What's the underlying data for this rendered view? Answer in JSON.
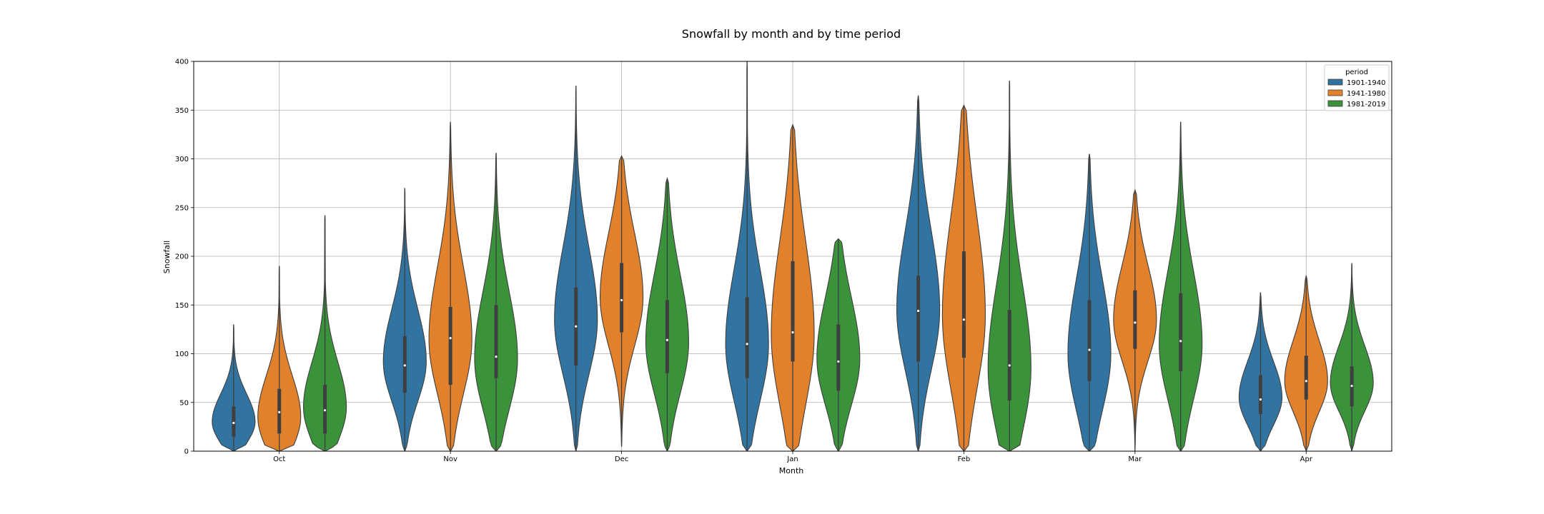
{
  "chart_data": {
    "type": "violin",
    "title": "Snowfall by month and by time period",
    "xlabel": "Month",
    "ylabel": "Snowfall",
    "ylim": [
      0,
      400
    ],
    "yticks": [
      0,
      50,
      100,
      150,
      200,
      250,
      300,
      350,
      400
    ],
    "grid": true,
    "legend": {
      "title": "period",
      "placement": "top-right"
    },
    "categories": [
      "Oct",
      "Nov",
      "Dec",
      "Jan",
      "Feb",
      "Mar",
      "Apr"
    ],
    "series": [
      {
        "name": "1901-1940",
        "color": "#3274a1",
        "violins": [
          {
            "min": 0,
            "max": 130,
            "q1": 15,
            "median": 29,
            "q3": 46,
            "peak": 30
          },
          {
            "min": 0,
            "max": 270,
            "q1": 60,
            "median": 88,
            "q3": 118,
            "peak": 92
          },
          {
            "min": 0,
            "max": 375,
            "q1": 88,
            "median": 128,
            "q3": 168,
            "peak": 135
          },
          {
            "min": 0,
            "max": 400,
            "q1": 75,
            "median": 110,
            "q3": 158,
            "peak": 110
          },
          {
            "min": 0,
            "max": 365,
            "q1": 92,
            "median": 144,
            "q3": 180,
            "peak": 145
          },
          {
            "min": 0,
            "max": 305,
            "q1": 72,
            "median": 104,
            "q3": 155,
            "peak": 100
          },
          {
            "min": 0,
            "max": 163,
            "q1": 38,
            "median": 53,
            "q3": 78,
            "peak": 55
          }
        ]
      },
      {
        "name": "1941-1980",
        "color": "#e1812c",
        "violins": [
          {
            "min": 0,
            "max": 190,
            "q1": 18,
            "median": 40,
            "q3": 64,
            "peak": 35
          },
          {
            "min": 0,
            "max": 338,
            "q1": 68,
            "median": 116,
            "q3": 148,
            "peak": 115
          },
          {
            "min": 5,
            "max": 303,
            "q1": 122,
            "median": 155,
            "q3": 193,
            "peak": 158
          },
          {
            "min": 0,
            "max": 335,
            "q1": 92,
            "median": 122,
            "q3": 195,
            "peak": 120
          },
          {
            "min": 0,
            "max": 355,
            "q1": 96,
            "median": 135,
            "q3": 205,
            "peak": 140
          },
          {
            "min": 0,
            "max": 268,
            "q1": 105,
            "median": 132,
            "q3": 165,
            "peak": 135
          },
          {
            "min": 0,
            "max": 180,
            "q1": 53,
            "median": 72,
            "q3": 98,
            "peak": 72
          }
        ]
      },
      {
        "name": "1981-2019",
        "color": "#3a923a",
        "violins": [
          {
            "min": 0,
            "max": 242,
            "q1": 18,
            "median": 42,
            "q3": 68,
            "peak": 45
          },
          {
            "min": 0,
            "max": 306,
            "q1": 75,
            "median": 97,
            "q3": 150,
            "peak": 95
          },
          {
            "min": 0,
            "max": 280,
            "q1": 80,
            "median": 114,
            "q3": 155,
            "peak": 112
          },
          {
            "min": 0,
            "max": 218,
            "q1": 62,
            "median": 92,
            "q3": 130,
            "peak": 95
          },
          {
            "min": 0,
            "max": 380,
            "q1": 52,
            "median": 88,
            "q3": 145,
            "peak": 85
          },
          {
            "min": 0,
            "max": 338,
            "q1": 82,
            "median": 113,
            "q3": 162,
            "peak": 110
          },
          {
            "min": 0,
            "max": 193,
            "q1": 46,
            "median": 67,
            "q3": 87,
            "peak": 70
          }
        ]
      }
    ]
  }
}
